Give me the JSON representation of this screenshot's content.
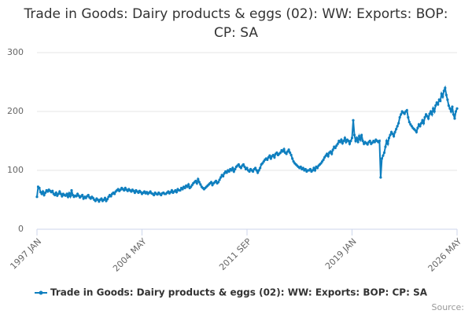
{
  "chart_data": {
    "type": "line",
    "title": "Trade in Goods: Dairy products & eggs (02): WW: Exports: BOP: CP: SA",
    "source": "Source:",
    "categories": [
      "1997 JAN",
      null,
      null,
      null,
      null,
      null,
      null,
      null,
      null,
      null,
      null,
      null,
      null,
      null,
      null,
      null,
      null,
      null,
      null,
      null,
      null,
      null,
      null,
      null,
      null,
      null,
      null,
      null,
      null,
      null,
      null,
      null,
      null,
      null,
      null,
      null,
      null,
      null,
      null,
      null,
      null,
      null,
      null,
      null,
      null,
      null,
      null,
      null,
      null,
      null,
      null,
      null,
      null,
      null,
      null,
      null,
      null,
      null,
      null,
      null,
      null,
      null,
      null,
      null,
      null,
      null,
      null,
      null,
      null,
      null,
      null,
      null,
      null,
      null,
      null,
      null,
      null,
      null,
      null,
      null,
      null,
      null,
      null,
      null,
      null,
      null,
      null,
      null,
      "2004 MAY",
      null,
      null,
      null,
      null,
      null,
      null,
      null,
      null,
      null,
      null,
      null,
      null,
      null,
      null,
      null,
      null,
      null,
      null,
      null,
      null,
      null,
      null,
      null,
      null,
      null,
      null,
      null,
      null,
      null,
      null,
      null,
      null,
      null,
      null,
      null,
      null,
      null,
      null,
      null,
      null,
      null,
      null,
      null,
      null,
      null,
      null,
      null,
      null,
      null,
      null,
      null,
      null,
      null,
      null,
      null,
      null,
      null,
      null,
      null,
      null,
      null,
      null,
      null,
      null,
      null,
      null,
      null,
      null,
      null,
      null,
      null,
      null,
      null,
      null,
      null,
      null,
      null,
      null,
      null,
      null,
      null,
      null,
      null,
      null,
      null,
      null,
      null,
      "2011 SEP",
      null,
      null,
      null,
      null,
      null,
      null,
      null,
      null,
      null,
      null,
      null,
      null,
      null,
      null,
      null,
      null,
      null,
      null,
      null,
      null,
      null,
      null,
      null,
      null,
      null,
      null,
      null,
      null,
      null,
      null,
      null,
      null,
      null,
      null,
      null,
      null,
      null,
      null,
      null,
      null,
      null,
      null,
      null,
      null,
      null,
      null,
      null,
      null,
      null,
      null,
      null,
      null,
      null,
      null,
      null,
      null,
      null,
      null,
      null,
      null,
      null,
      null,
      null,
      null,
      null,
      null,
      null,
      null,
      null,
      null,
      null,
      null,
      null,
      null,
      null,
      null,
      null,
      null,
      null,
      null,
      null,
      null,
      null,
      null,
      null,
      null,
      null,
      "2019 JAN",
      null,
      null,
      null,
      null,
      null,
      null,
      null,
      null,
      null,
      null,
      null,
      null,
      null,
      null,
      null,
      null,
      null,
      null,
      null,
      null,
      null,
      null,
      null,
      null,
      null,
      null,
      null,
      null,
      null,
      null,
      null,
      null,
      null,
      null,
      null,
      null,
      null,
      null,
      null,
      null,
      null,
      null,
      null,
      null,
      null,
      null,
      null,
      null,
      null,
      null,
      null,
      null,
      null,
      null,
      null,
      null,
      null,
      null,
      null,
      null,
      null,
      null,
      null,
      null,
      null,
      null,
      null,
      null,
      null,
      null,
      null,
      null,
      null,
      null,
      null,
      null,
      null,
      null,
      null,
      null,
      null,
      null,
      null,
      null,
      null,
      null,
      null,
      "2026 MAY"
    ],
    "series": [
      {
        "name": "Trade in Goods: Dairy products & eggs (02): WW: Exports: BOP: CP: SA",
        "color": "#0f7fbf",
        "values": [
          55,
          72,
          70,
          63,
          60,
          64,
          58,
          62,
          66,
          64,
          67,
          65,
          63,
          65,
          60,
          58,
          62,
          57,
          60,
          64,
          60,
          56,
          60,
          58,
          57,
          60,
          55,
          61,
          56,
          66,
          58,
          55,
          57,
          56,
          60,
          57,
          54,
          56,
          58,
          52,
          55,
          53,
          56,
          58,
          54,
          52,
          55,
          53,
          50,
          48,
          52,
          50,
          47,
          50,
          52,
          48,
          50,
          53,
          48,
          51,
          55,
          58,
          56,
          60,
          62,
          60,
          64,
          66,
          68,
          65,
          67,
          70,
          68,
          66,
          70,
          67,
          65,
          68,
          66,
          64,
          67,
          65,
          62,
          66,
          64,
          62,
          65,
          63,
          60,
          62,
          64,
          61,
          63,
          60,
          62,
          64,
          61,
          60,
          58,
          62,
          60,
          59,
          62,
          60,
          58,
          61,
          62,
          60,
          60,
          62,
          64,
          61,
          63,
          66,
          62,
          64,
          66,
          63,
          68,
          66,
          66,
          70,
          68,
          72,
          70,
          74,
          72,
          76,
          70,
          72,
          75,
          78,
          80,
          82,
          78,
          85,
          80,
          76,
          72,
          70,
          68,
          70,
          72,
          74,
          76,
          78,
          80,
          75,
          78,
          80,
          82,
          78,
          80,
          84,
          88,
          92,
          90,
          95,
          98,
          96,
          100,
          98,
          102,
          100,
          104,
          98,
          102,
          106,
          108,
          110,
          106,
          104,
          108,
          110,
          106,
          102,
          104,
          100,
          98,
          102,
          100,
          98,
          102,
          104,
          100,
          96,
          100,
          104,
          110,
          112,
          115,
          118,
          120,
          118,
          122,
          125,
          120,
          124,
          126,
          122,
          128,
          130,
          126,
          128,
          130,
          134,
          132,
          136,
          130,
          128,
          132,
          135,
          130,
          126,
          120,
          115,
          112,
          110,
          108,
          106,
          104,
          106,
          102,
          104,
          100,
          102,
          98,
          100,
          100,
          102,
          98,
          100,
          104,
          100,
          106,
          104,
          108,
          110,
          112,
          115,
          118,
          122,
          125,
          128,
          124,
          130,
          132,
          128,
          135,
          140,
          138,
          142,
          145,
          150,
          148,
          152,
          146,
          150,
          155,
          148,
          152,
          150,
          145,
          150,
          155,
          185,
          160,
          150,
          155,
          148,
          158,
          152,
          160,
          150,
          145,
          148,
          146,
          144,
          148,
          150,
          145,
          147,
          150,
          148,
          152,
          150,
          148,
          150,
          88,
          120,
          125,
          130,
          140,
          150,
          145,
          155,
          160,
          165,
          162,
          158,
          165,
          170,
          175,
          180,
          190,
          195,
          200,
          198,
          196,
          200,
          202,
          190,
          182,
          178,
          175,
          172,
          170,
          168,
          165,
          172,
          178,
          175,
          180,
          185,
          180,
          190,
          195,
          192,
          188,
          196,
          200,
          195,
          205,
          200,
          210,
          215,
          212,
          220,
          218,
          230,
          225,
          235,
          240,
          228,
          220,
          210,
          205,
          200,
          208,
          195,
          188,
          200,
          205
        ]
      }
    ],
    "ylim": [
      0,
      300
    ],
    "yticks": [
      0,
      100,
      200,
      300
    ],
    "grid": true
  }
}
